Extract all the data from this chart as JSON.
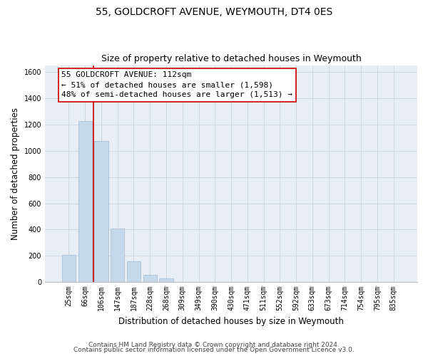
{
  "title": "55, GOLDCROFT AVENUE, WEYMOUTH, DT4 0ES",
  "subtitle": "Size of property relative to detached houses in Weymouth",
  "xlabel": "Distribution of detached houses by size in Weymouth",
  "ylabel": "Number of detached properties",
  "bar_labels": [
    "25sqm",
    "66sqm",
    "106sqm",
    "147sqm",
    "187sqm",
    "228sqm",
    "268sqm",
    "309sqm",
    "349sqm",
    "390sqm",
    "430sqm",
    "471sqm",
    "511sqm",
    "552sqm",
    "592sqm",
    "633sqm",
    "673sqm",
    "714sqm",
    "754sqm",
    "795sqm",
    "835sqm"
  ],
  "bar_values": [
    205,
    1225,
    1075,
    410,
    160,
    55,
    25,
    0,
    0,
    0,
    0,
    0,
    0,
    0,
    0,
    0,
    0,
    0,
    0,
    0,
    0
  ],
  "bar_color": "#c5d9ec",
  "highlight_color": "#cc0000",
  "ylim": [
    0,
    1650
  ],
  "yticks": [
    0,
    200,
    400,
    600,
    800,
    1000,
    1200,
    1400,
    1600
  ],
  "red_line_x": 1.5,
  "annotation_title": "55 GOLDCROFT AVENUE: 112sqm",
  "annotation_line1": "← 51% of detached houses are smaller (1,598)",
  "annotation_line2": "48% of semi-detached houses are larger (1,513) →",
  "footer_line1": "Contains HM Land Registry data © Crown copyright and database right 2024.",
  "footer_line2": "Contains public sector information licensed under the Open Government Licence v3.0.",
  "bg_color": "#ffffff",
  "plot_bg_color": "#e8eef5",
  "grid_color": "#c8d4e4",
  "title_fontsize": 10,
  "subtitle_fontsize": 9,
  "axis_label_fontsize": 8.5,
  "tick_fontsize": 7,
  "annot_fontsize": 8,
  "footer_fontsize": 6.5
}
